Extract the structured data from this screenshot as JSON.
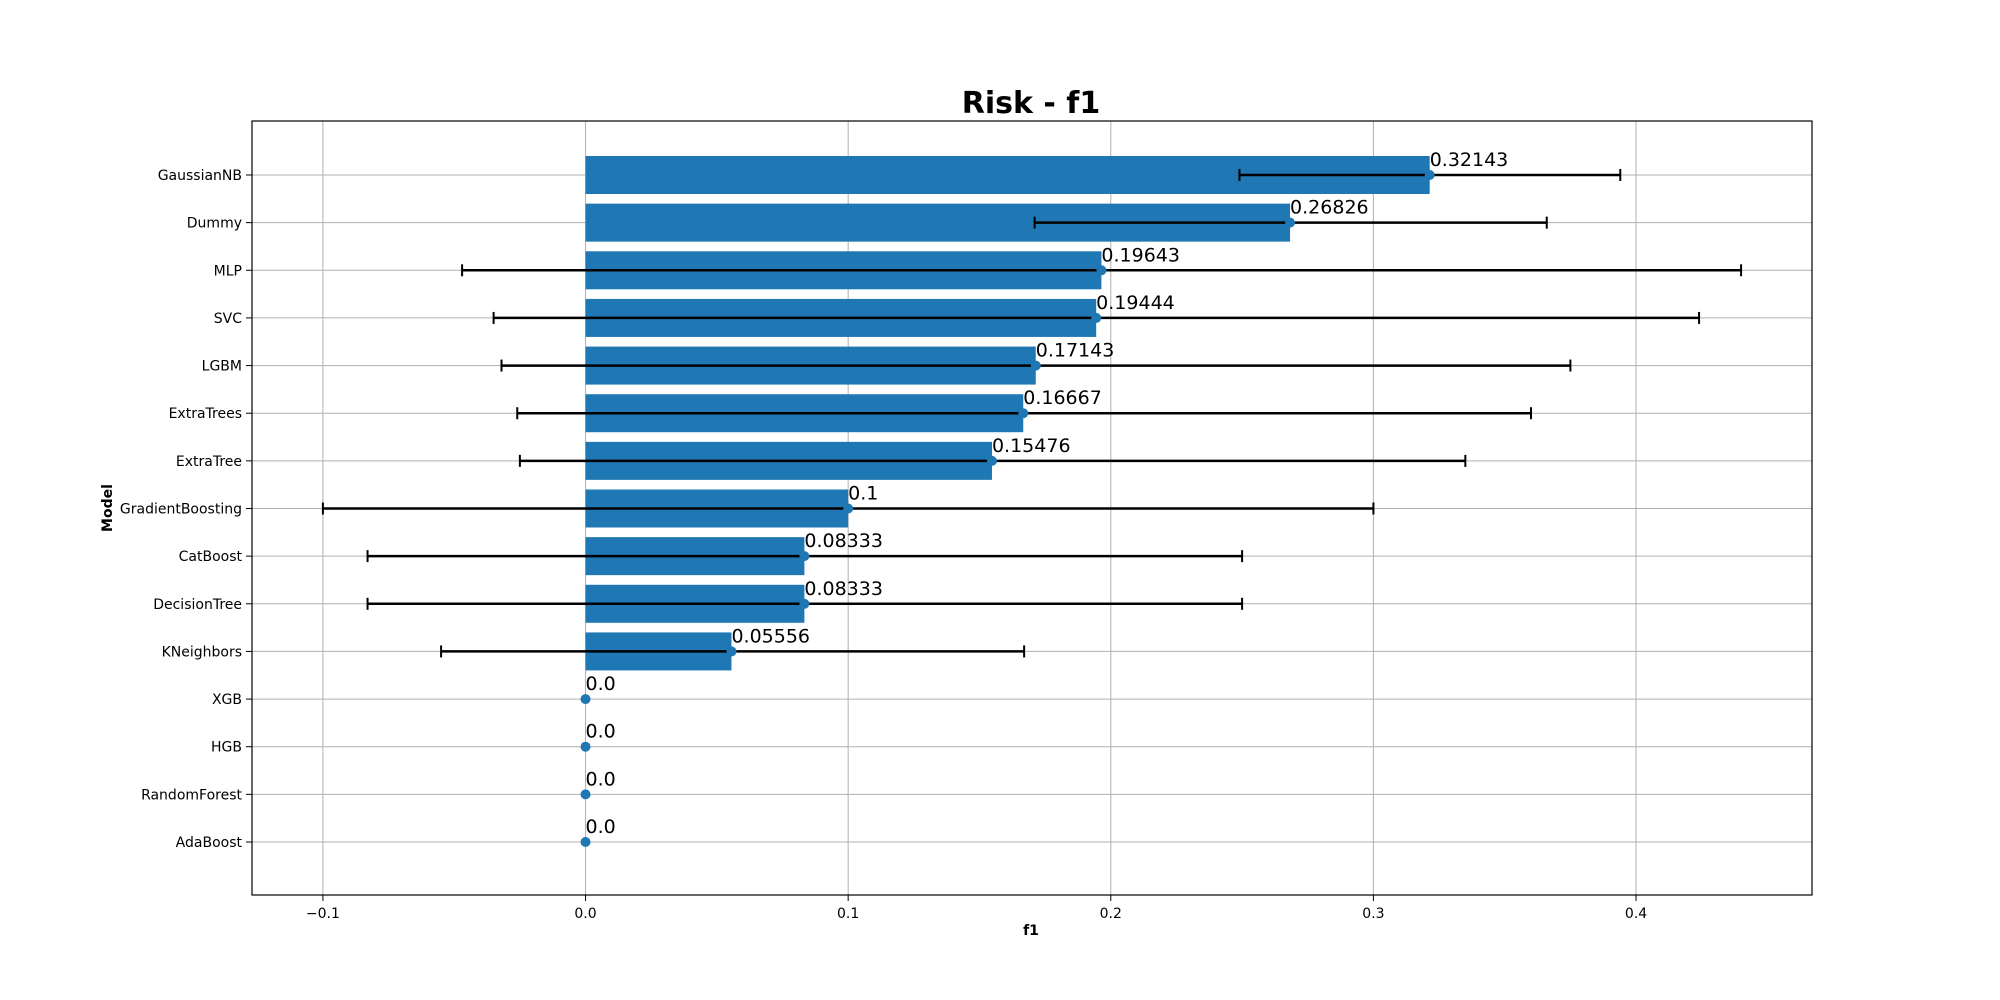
{
  "chart_data": {
    "type": "bar",
    "orientation": "horizontal",
    "title": "Risk - f1",
    "xlabel": "f1",
    "ylabel": "Model",
    "xlim": [
      -0.127,
      0.467
    ],
    "xticks": [
      -0.1,
      0.0,
      0.1,
      0.2,
      0.3,
      0.4
    ],
    "xtick_labels": [
      "−0.1",
      "0.0",
      "0.1",
      "0.2",
      "0.3",
      "0.4"
    ],
    "grid": true,
    "bar_color": "#1f77b4",
    "marker_color": "#1f77b4",
    "errorbar_color": "#000000",
    "categories": [
      "GaussianNB",
      "Dummy",
      "MLP",
      "SVC",
      "LGBM",
      "ExtraTrees",
      "ExtraTree",
      "GradientBoosting",
      "CatBoost",
      "DecisionTree",
      "KNeighbors",
      "XGB",
      "HGB",
      "RandomForest",
      "AdaBoost"
    ],
    "values": [
      0.32143,
      0.26826,
      0.19643,
      0.19444,
      0.17143,
      0.16667,
      0.15476,
      0.1,
      0.08333,
      0.08333,
      0.05556,
      0.0,
      0.0,
      0.0,
      0.0
    ],
    "value_labels": [
      "0.32143",
      "0.26826",
      "0.19643",
      "0.19444",
      "0.17143",
      "0.16667",
      "0.15476",
      "0.1",
      "0.08333",
      "0.08333",
      "0.05556",
      "0.0",
      "0.0",
      "0.0",
      "0.0"
    ],
    "error_low": [
      0.249,
      0.171,
      -0.047,
      -0.035,
      -0.032,
      -0.026,
      -0.025,
      -0.1,
      -0.083,
      -0.083,
      -0.055,
      null,
      null,
      null,
      null
    ],
    "error_high": [
      0.394,
      0.366,
      0.44,
      0.424,
      0.375,
      0.36,
      0.335,
      0.3,
      0.25,
      0.25,
      0.167,
      null,
      null,
      null,
      null
    ]
  }
}
